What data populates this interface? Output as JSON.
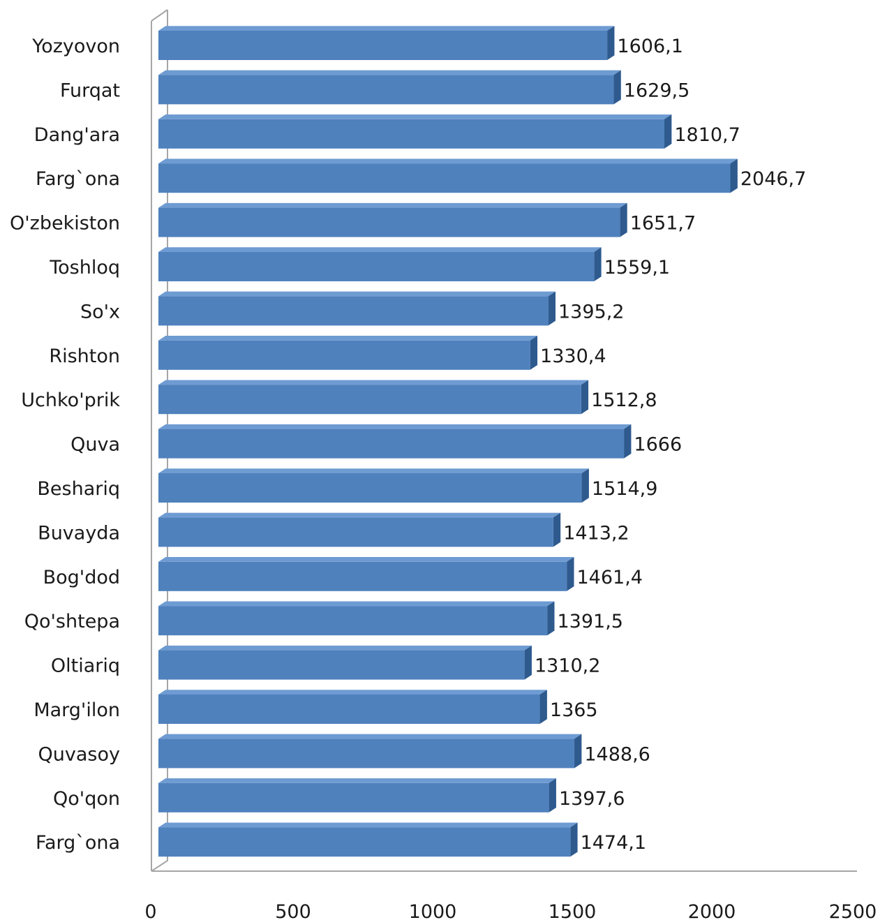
{
  "chart_data": {
    "type": "bar",
    "orientation": "horizontal",
    "style": "3d",
    "bar_color": "#4F81BD",
    "bar_top_color": "#6E9BD2",
    "bar_side_color": "#2E5A8E",
    "categories": [
      "Yozyovon",
      "Furqat",
      "Dang'ara",
      "Farg`ona",
      "O'zbekiston",
      "Toshloq",
      "So'x",
      "Rishton",
      "Uchko'prik",
      "Quva",
      "Beshariq",
      "Buvayda",
      "Bog'dod",
      "Qo'shtepa",
      "Oltiariq",
      "Marg'ilon",
      "Quvasoy",
      "Qo'qon",
      "Farg`ona"
    ],
    "values": [
      1606.1,
      1629.5,
      1810.7,
      2046.7,
      1651.7,
      1559.1,
      1395.2,
      1330.4,
      1512.8,
      1666,
      1514.9,
      1413.2,
      1461.4,
      1391.5,
      1310.2,
      1365,
      1488.6,
      1397.6,
      1474.1
    ],
    "value_labels": [
      "1606,1",
      "1629,5",
      "1810,7",
      "2046,7",
      "1651,7",
      "1559,1",
      "1395,2",
      "1330,4",
      "1512,8",
      "1666",
      "1514,9",
      "1413,2",
      "1461,4",
      "1391,5",
      "1310,2",
      "1365",
      "1488,6",
      "1397,6",
      "1474,1"
    ],
    "xlim": [
      0,
      2500
    ],
    "x_ticks": [
      0,
      500,
      1000,
      1500,
      2000,
      2500
    ],
    "x_tick_labels": [
      "0",
      "500",
      "1000",
      "1500",
      "2000",
      "2500"
    ],
    "title": "",
    "xlabel": "",
    "ylabel": "",
    "legend": "none",
    "grid": false
  }
}
